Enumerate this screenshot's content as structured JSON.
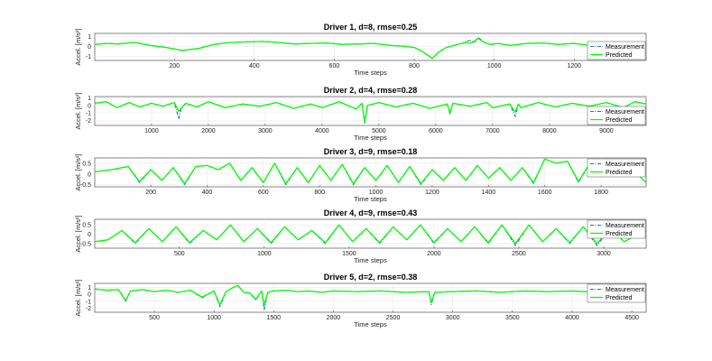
{
  "legend_labels": [
    "Measurement",
    "Predicted"
  ],
  "colors": {
    "measurement": "#1f77b4",
    "predicted": "#00ff00",
    "axis": "#333333",
    "grid": "#e6e6e6"
  },
  "chart_data": [
    {
      "type": "line",
      "title": "Driver 1, d=8, rmse=0.25",
      "xlabel": "Time steps",
      "ylabel": "Accel. [m/s²]",
      "xlim": [
        1,
        1380
      ],
      "ylim": [
        -1.4,
        1.3
      ],
      "xticks": [
        200,
        400,
        600,
        800,
        1000,
        1200
      ],
      "yticks": [
        -1,
        0,
        1
      ],
      "legend_loc": "bottom-right",
      "series": [
        {
          "name": "Measurement",
          "style": "dashdot",
          "x": [
            1,
            30,
            60,
            100,
            140,
            180,
            220,
            260,
            300,
            340,
            380,
            420,
            460,
            500,
            540,
            580,
            620,
            660,
            700,
            740,
            780,
            800,
            820,
            835,
            845,
            860,
            880,
            900,
            920,
            930,
            940,
            950,
            960,
            975,
            990,
            1010,
            1040,
            1080,
            1120,
            1160,
            1200,
            1240,
            1280,
            1320,
            1350,
            1380
          ],
          "y": [
            0.2,
            0.3,
            0.25,
            0.4,
            0.1,
            -0.1,
            -0.4,
            -0.2,
            0.2,
            0.4,
            0.45,
            0.5,
            0.4,
            0.25,
            0.3,
            0.35,
            0.2,
            0.25,
            0.3,
            0.1,
            0.0,
            -0.1,
            -0.5,
            -0.9,
            -1.2,
            -0.6,
            -0.1,
            0.1,
            0.3,
            0.5,
            0.6,
            0.4,
            0.9,
            0.4,
            0.2,
            0.3,
            0.1,
            0.3,
            0.35,
            0.2,
            0.3,
            0.1,
            0.25,
            0.2,
            0.1,
            0.3
          ]
        },
        {
          "name": "Predicted",
          "style": "solid",
          "x": [
            1,
            30,
            60,
            100,
            140,
            180,
            220,
            260,
            300,
            340,
            380,
            420,
            460,
            500,
            540,
            580,
            620,
            660,
            700,
            740,
            780,
            800,
            820,
            835,
            845,
            860,
            880,
            900,
            920,
            930,
            940,
            950,
            960,
            975,
            990,
            1010,
            1040,
            1080,
            1120,
            1160,
            1200,
            1240,
            1280,
            1320,
            1350,
            1380
          ],
          "y": [
            0.2,
            0.3,
            0.25,
            0.4,
            0.1,
            -0.1,
            -0.4,
            -0.2,
            0.2,
            0.4,
            0.45,
            0.5,
            0.4,
            0.25,
            0.3,
            0.35,
            0.2,
            0.25,
            0.3,
            0.1,
            0.0,
            -0.1,
            -0.5,
            -0.9,
            -1.2,
            -0.6,
            -0.1,
            0.1,
            0.3,
            0.4,
            0.3,
            0.5,
            0.8,
            0.4,
            0.2,
            0.3,
            0.1,
            0.3,
            0.35,
            0.2,
            0.3,
            0.1,
            0.25,
            0.2,
            0.1,
            0.3
          ]
        }
      ]
    },
    {
      "type": "line",
      "title": "Driver 2, d=4, rmse=0.28",
      "xlabel": "Time steps",
      "ylabel": "Accel. [m/s²]",
      "xlim": [
        1,
        9700
      ],
      "ylim": [
        -2.7,
        1.2
      ],
      "xticks": [
        1000,
        2000,
        3000,
        4000,
        5000,
        6000,
        7000,
        8000,
        9000
      ],
      "yticks": [
        -2,
        -1,
        0,
        1
      ],
      "legend_loc": "bottom-right",
      "series": [
        {
          "name": "Measurement",
          "style": "dashdot",
          "x": [
            1,
            200,
            400,
            600,
            800,
            1000,
            1200,
            1400,
            1480,
            1520,
            1600,
            1800,
            2000,
            2300,
            2600,
            2900,
            3200,
            3500,
            3800,
            4000,
            4300,
            4600,
            4700,
            4750,
            4800,
            5000,
            5300,
            5600,
            5900,
            6200,
            6250,
            6300,
            6600,
            6900,
            7000,
            7300,
            7400,
            7450,
            7500,
            7800,
            8100,
            8400,
            8700,
            9000,
            9300,
            9500,
            9700
          ],
          "y": [
            0.3,
            0.5,
            -0.3,
            0.4,
            -0.2,
            0.3,
            -0.1,
            0.4,
            -1.8,
            -0.5,
            0.3,
            -0.2,
            0.5,
            -0.3,
            0.2,
            -0.1,
            0.4,
            -0.4,
            0.2,
            -0.3,
            0.5,
            -0.5,
            0.3,
            -2.4,
            0.0,
            0.4,
            -0.2,
            0.3,
            -0.4,
            0.2,
            -1.2,
            0.3,
            -0.1,
            0.4,
            -0.3,
            0.2,
            -1.5,
            0.2,
            -0.3,
            0.4,
            -0.2,
            0.3,
            -0.1,
            0.4,
            -0.3,
            0.5,
            0.2
          ]
        },
        {
          "name": "Predicted",
          "style": "solid",
          "x": [
            1,
            200,
            400,
            600,
            800,
            1000,
            1200,
            1400,
            1480,
            1520,
            1600,
            1800,
            2000,
            2300,
            2600,
            2900,
            3200,
            3500,
            3800,
            4000,
            4300,
            4600,
            4700,
            4750,
            4800,
            5000,
            5300,
            5600,
            5900,
            6200,
            6250,
            6300,
            6600,
            6900,
            7000,
            7300,
            7400,
            7450,
            7500,
            7800,
            8100,
            8400,
            8700,
            9000,
            9300,
            9500,
            9700
          ],
          "y": [
            0.3,
            0.5,
            -0.3,
            0.4,
            -0.2,
            0.3,
            -0.1,
            0.4,
            -0.8,
            -0.4,
            0.3,
            -0.2,
            0.5,
            -0.3,
            0.2,
            -0.1,
            0.4,
            -0.4,
            0.2,
            -0.3,
            0.5,
            -0.5,
            0.3,
            -2.2,
            0.0,
            0.4,
            -0.2,
            0.3,
            -0.4,
            0.2,
            -1.0,
            0.3,
            -0.1,
            0.4,
            -0.3,
            0.2,
            -0.9,
            0.2,
            -0.3,
            0.4,
            -0.2,
            0.3,
            -0.1,
            0.4,
            -0.3,
            0.5,
            0.2
          ]
        }
      ]
    },
    {
      "type": "line",
      "title": "Driver 3, d=9, rmse=0.18",
      "xlabel": "Time steps",
      "ylabel": "Accel. [m/s²]",
      "xlim": [
        1,
        1960
      ],
      "ylim": [
        -0.6,
        0.75
      ],
      "xticks": [
        200,
        400,
        600,
        800,
        1000,
        1200,
        1400,
        1600,
        1800
      ],
      "yticks": [
        -0.5,
        0,
        0.5
      ],
      "legend_loc": "top-right",
      "series": [
        {
          "name": "Measurement",
          "style": "dashdot",
          "x": [
            1,
            60,
            120,
            160,
            200,
            240,
            280,
            320,
            360,
            400,
            440,
            480,
            520,
            560,
            600,
            640,
            680,
            720,
            760,
            800,
            840,
            880,
            920,
            960,
            1000,
            1040,
            1080,
            1120,
            1160,
            1200,
            1240,
            1280,
            1320,
            1360,
            1400,
            1440,
            1480,
            1520,
            1560,
            1600,
            1640,
            1680,
            1720,
            1760,
            1800,
            1840,
            1880,
            1920,
            1960
          ],
          "y": [
            0.1,
            0.2,
            0.35,
            -0.4,
            0.2,
            -0.3,
            0.3,
            -0.5,
            0.35,
            0.4,
            0.2,
            0.5,
            -0.3,
            0.3,
            -0.4,
            0.5,
            -0.5,
            0.3,
            -0.4,
            0.4,
            -0.3,
            0.45,
            -0.5,
            0.3,
            -0.3,
            0.4,
            -0.4,
            0.35,
            -0.5,
            0.2,
            -0.3,
            0.3,
            -0.3,
            0.4,
            -0.2,
            0.3,
            -0.3,
            0.3,
            -0.45,
            0.7,
            0.5,
            0.6,
            -0.4,
            0.5,
            0.1,
            0.2,
            0.3,
            0.1,
            -0.4
          ]
        },
        {
          "name": "Predicted",
          "style": "solid",
          "x": [
            1,
            60,
            120,
            160,
            200,
            240,
            280,
            320,
            360,
            400,
            440,
            480,
            520,
            560,
            600,
            640,
            680,
            720,
            760,
            800,
            840,
            880,
            920,
            960,
            1000,
            1040,
            1080,
            1120,
            1160,
            1200,
            1240,
            1280,
            1320,
            1360,
            1400,
            1440,
            1480,
            1520,
            1560,
            1600,
            1640,
            1680,
            1720,
            1760,
            1800,
            1840,
            1880,
            1920,
            1960
          ],
          "y": [
            0.1,
            0.2,
            0.35,
            -0.35,
            0.2,
            -0.3,
            0.3,
            -0.45,
            0.35,
            0.4,
            0.2,
            0.5,
            -0.3,
            0.3,
            -0.4,
            0.5,
            -0.45,
            0.3,
            -0.4,
            0.4,
            -0.3,
            0.45,
            -0.45,
            0.3,
            -0.3,
            0.4,
            -0.4,
            0.35,
            -0.45,
            0.2,
            -0.3,
            0.3,
            -0.3,
            0.4,
            -0.2,
            0.3,
            -0.3,
            0.3,
            -0.4,
            0.7,
            0.5,
            0.6,
            -0.35,
            0.5,
            0.1,
            0.2,
            0.3,
            0.1,
            -0.4
          ]
        }
      ]
    },
    {
      "type": "line",
      "title": "Driver 4, d=9, rmse=0.43",
      "xlabel": "Time steps",
      "ylabel": "Accel. [m/s²]",
      "xlim": [
        1,
        3250
      ],
      "ylim": [
        -0.75,
        0.8
      ],
      "xticks": [
        500,
        1000,
        1500,
        2000,
        2500,
        3000
      ],
      "yticks": [
        -0.5,
        0,
        0.5
      ],
      "legend_loc": "top-right",
      "series": [
        {
          "name": "Measurement",
          "style": "dashdot",
          "x": [
            1,
            80,
            160,
            240,
            320,
            400,
            480,
            560,
            640,
            720,
            800,
            880,
            960,
            1040,
            1120,
            1200,
            1280,
            1360,
            1440,
            1520,
            1600,
            1680,
            1760,
            1840,
            1920,
            2000,
            2080,
            2160,
            2240,
            2320,
            2400,
            2480,
            2560,
            2640,
            2720,
            2800,
            2880,
            2960,
            3040,
            3120,
            3250
          ],
          "y": [
            -0.4,
            -0.3,
            0.2,
            -0.5,
            0.3,
            -0.4,
            0.4,
            -0.5,
            0.2,
            -0.3,
            0.5,
            -0.4,
            0.3,
            -0.5,
            0.4,
            -0.3,
            0.2,
            -0.5,
            0.5,
            -0.4,
            0.3,
            -0.5,
            0.4,
            -0.3,
            0.5,
            -0.5,
            0.3,
            -0.4,
            0.4,
            -0.5,
            0.5,
            -0.6,
            0.5,
            -0.4,
            0.3,
            -0.5,
            0.4,
            -0.6,
            0.3,
            -0.4,
            0.2
          ]
        },
        {
          "name": "Predicted",
          "style": "solid",
          "x": [
            1,
            80,
            160,
            240,
            320,
            400,
            480,
            560,
            640,
            720,
            800,
            880,
            960,
            1040,
            1120,
            1200,
            1280,
            1360,
            1440,
            1520,
            1600,
            1680,
            1760,
            1840,
            1920,
            2000,
            2080,
            2160,
            2240,
            2320,
            2400,
            2480,
            2560,
            2640,
            2720,
            2800,
            2880,
            2960,
            3040,
            3120,
            3250
          ],
          "y": [
            -0.4,
            -0.3,
            0.2,
            -0.45,
            0.3,
            -0.4,
            0.4,
            -0.45,
            0.2,
            -0.3,
            0.5,
            -0.4,
            0.3,
            -0.45,
            0.4,
            -0.3,
            0.2,
            -0.45,
            0.5,
            -0.4,
            0.3,
            -0.45,
            0.4,
            -0.3,
            0.5,
            -0.45,
            0.3,
            -0.4,
            0.4,
            -0.45,
            0.5,
            -0.5,
            0.5,
            -0.4,
            0.3,
            -0.45,
            0.4,
            -0.5,
            0.3,
            -0.4,
            0.2
          ]
        }
      ]
    },
    {
      "type": "line",
      "title": "Driver 5, d=2, rmse=0.38",
      "xlabel": "Time steps",
      "ylabel": "Accel. [m/s²]",
      "xlim": [
        1,
        4620
      ],
      "ylim": [
        -2.6,
        1.6
      ],
      "xticks": [
        500,
        1000,
        1500,
        2000,
        2500,
        3000,
        3500,
        4000,
        4500
      ],
      "yticks": [
        -2,
        -1,
        0,
        1
      ],
      "legend_loc": "top-right",
      "series": [
        {
          "name": "Measurement",
          "style": "dashdot",
          "x": [
            1,
            100,
            200,
            260,
            300,
            400,
            500,
            600,
            700,
            800,
            900,
            1000,
            1050,
            1100,
            1150,
            1200,
            1250,
            1300,
            1350,
            1400,
            1420,
            1450,
            1500,
            1600,
            1700,
            1800,
            1900,
            2000,
            2200,
            2400,
            2600,
            2800,
            2820,
            2850,
            3000,
            3200,
            3400,
            3600,
            3800,
            4000,
            4200,
            4400,
            4620
          ],
          "y": [
            0.8,
            0.6,
            0.7,
            -1.0,
            0.5,
            0.7,
            0.4,
            0.6,
            0.3,
            0.6,
            -0.5,
            0.5,
            -1.8,
            0.4,
            0.9,
            1.3,
            0.3,
            0.2,
            -0.8,
            0.5,
            -2.3,
            0.3,
            0.5,
            0.6,
            0.4,
            0.5,
            0.3,
            0.5,
            0.4,
            0.5,
            0.3,
            0.4,
            -1.5,
            0.3,
            0.4,
            0.5,
            0.3,
            0.5,
            0.4,
            0.5,
            0.3,
            0.4,
            0.5
          ]
        },
        {
          "name": "Predicted",
          "style": "solid",
          "x": [
            1,
            100,
            200,
            260,
            300,
            400,
            500,
            600,
            700,
            800,
            900,
            1000,
            1050,
            1100,
            1150,
            1200,
            1250,
            1300,
            1350,
            1400,
            1420,
            1450,
            1500,
            1600,
            1700,
            1800,
            1900,
            2000,
            2200,
            2400,
            2600,
            2800,
            2820,
            2850,
            3000,
            3200,
            3400,
            3600,
            3800,
            4000,
            4200,
            4400,
            4620
          ],
          "y": [
            0.8,
            0.6,
            0.7,
            -0.9,
            0.5,
            0.7,
            0.4,
            0.6,
            0.3,
            0.6,
            -0.4,
            0.5,
            -1.5,
            0.4,
            0.9,
            1.3,
            0.3,
            0.2,
            -0.7,
            0.5,
            -1.6,
            0.3,
            0.5,
            0.6,
            0.4,
            0.5,
            0.3,
            0.5,
            0.4,
            0.5,
            0.3,
            0.4,
            -1.2,
            0.3,
            0.4,
            0.5,
            0.3,
            0.5,
            0.4,
            0.5,
            0.3,
            0.4,
            0.5
          ]
        }
      ]
    }
  ]
}
